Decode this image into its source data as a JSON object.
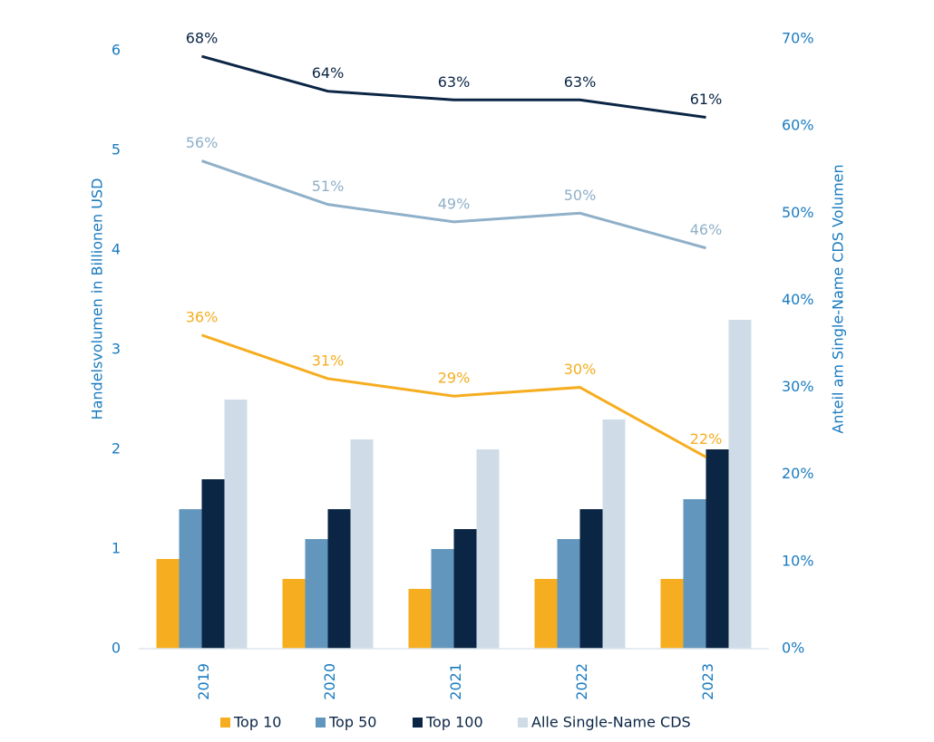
{
  "chart_data": {
    "type": "bar",
    "categories": [
      "2019",
      "2020",
      "2021",
      "2022",
      "2023"
    ],
    "ylabel": "Handelsvolumen in  Billionen USD",
    "y2label": "Anteil am Single-Name CDS Volumen",
    "ylim": [
      0,
      6
    ],
    "yticks": [
      0,
      1,
      2,
      3,
      4,
      5,
      6
    ],
    "y2lim": [
      0,
      70
    ],
    "y2ticks": [
      {
        "value": 0,
        "label": "0%"
      },
      {
        "value": 10,
        "label": "10%"
      },
      {
        "value": 20,
        "label": "20%"
      },
      {
        "value": 30,
        "label": "30%"
      },
      {
        "value": 40,
        "label": "40%"
      },
      {
        "value": 50,
        "label": "50%"
      },
      {
        "value": 60,
        "label": "60%"
      },
      {
        "value": 70,
        "label": "70%"
      }
    ],
    "series": [
      {
        "name": "Top 10",
        "color": "#f6ad1f",
        "values": [
          0.9,
          0.7,
          0.6,
          0.7,
          0.7
        ]
      },
      {
        "name": "Top 50",
        "color": "#6396bd",
        "values": [
          1.4,
          1.1,
          1.0,
          1.1,
          1.5
        ]
      },
      {
        "name": "Top 100",
        "color": "#0b2545",
        "values": [
          1.7,
          1.4,
          1.2,
          1.4,
          2.0
        ]
      },
      {
        "name": "Alle Single-Name CDS",
        "color": "#cfdce7",
        "values": [
          2.5,
          2.1,
          2.0,
          2.3,
          3.3
        ]
      },
      {
        "type": "line",
        "axis": "y2",
        "color": "#0b2545",
        "values": [
          68,
          64,
          63,
          63,
          61
        ],
        "value_labels": [
          "68%",
          "64%",
          "63%",
          "63%",
          "61%"
        ]
      },
      {
        "type": "line",
        "axis": "y2",
        "color": "#8fb0c9",
        "values": [
          56,
          51,
          49,
          50,
          46
        ],
        "value_labels": [
          "56%",
          "51%",
          "49%",
          "50%",
          "46%"
        ]
      },
      {
        "type": "line",
        "axis": "y2",
        "color": "#f6ad1f",
        "values": [
          36,
          31,
          29,
          30,
          22
        ],
        "value_labels": [
          "36%",
          "31%",
          "29%",
          "30%",
          "22%"
        ]
      }
    ]
  }
}
